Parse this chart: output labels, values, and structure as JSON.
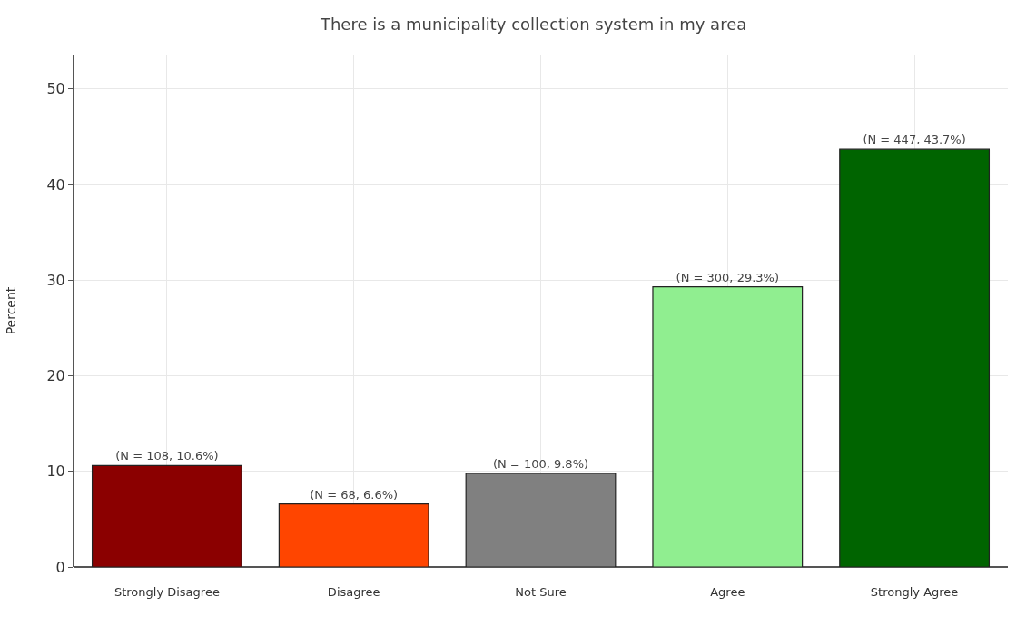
{
  "chart_data": {
    "type": "bar",
    "title": "There is a municipality collection system in my area",
    "ylabel": "Percent",
    "categories": [
      "Strongly Disagree",
      "Disagree",
      "Not Sure",
      "Agree",
      "Strongly Agree"
    ],
    "values": [
      10.6,
      6.6,
      9.8,
      29.3,
      43.7
    ],
    "colors": [
      "#8b0000",
      "#ff4500",
      "#808080",
      "#90ee90",
      "#006400"
    ],
    "value_labels": [
      "(N = 108, 10.6%)",
      "(N = 68, 6.6%)",
      "(N = 100, 9.8%)",
      "(N = 300, 29.3%)",
      "(N = 447, 43.7%)"
    ],
    "ylim": [
      0,
      53.6
    ],
    "yticks": [
      0,
      10,
      20,
      30,
      40,
      50
    ],
    "grid": true
  }
}
